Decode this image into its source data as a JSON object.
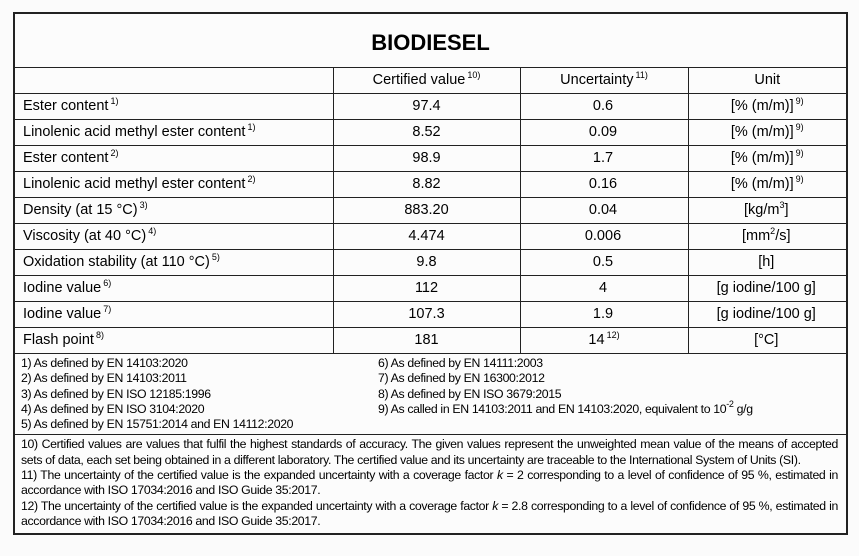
{
  "title": "BIODIESEL",
  "headers": {
    "property": "",
    "certified": "Certified value",
    "certified_ref": "10)",
    "uncertainty": "Uncertainty",
    "uncertainty_ref": "11)",
    "unit": "Unit"
  },
  "rows": [
    {
      "label": "Ester content",
      "ref": "1)",
      "value": "97.4",
      "unc": "0.6",
      "unc_ref": "",
      "unit": "[% (m/m)]",
      "unit_sup": "",
      "unit_tail": "",
      "unit_ref": "9)"
    },
    {
      "label": "Linolenic acid methyl ester content",
      "ref": "1)",
      "value": "8.52",
      "unc": "0.09",
      "unc_ref": "",
      "unit": "[% (m/m)]",
      "unit_sup": "",
      "unit_tail": "",
      "unit_ref": "9)"
    },
    {
      "label": "Ester content",
      "ref": "2)",
      "value": "98.9",
      "unc": "1.7",
      "unc_ref": "",
      "unit": "[% (m/m)]",
      "unit_sup": "",
      "unit_tail": "",
      "unit_ref": "9)"
    },
    {
      "label": "Linolenic acid methyl ester content",
      "ref": "2)",
      "value": "8.82",
      "unc": "0.16",
      "unc_ref": "",
      "unit": "[% (m/m)]",
      "unit_sup": "",
      "unit_tail": "",
      "unit_ref": "9)"
    },
    {
      "label": "Density (at 15 °C)",
      "ref": "3)",
      "value": "883.20",
      "unc": "0.04",
      "unc_ref": "",
      "unit": "[kg/m",
      "unit_sup": "3",
      "unit_tail": "]",
      "unit_ref": ""
    },
    {
      "label": "Viscosity (at 40 °C)",
      "ref": "4)",
      "value": "4.474",
      "unc": "0.006",
      "unc_ref": "",
      "unit": "[mm",
      "unit_sup": "2",
      "unit_tail": "/s]",
      "unit_ref": ""
    },
    {
      "label": "Oxidation stability (at 110 °C)",
      "ref": "5)",
      "value": "9.8",
      "unc": "0.5",
      "unc_ref": "",
      "unit": "[h]",
      "unit_sup": "",
      "unit_tail": "",
      "unit_ref": ""
    },
    {
      "label": "Iodine value",
      "ref": "6)",
      "value": "112",
      "unc": "4",
      "unc_ref": "",
      "unit": "[g iodine/100 g]",
      "unit_sup": "",
      "unit_tail": "",
      "unit_ref": ""
    },
    {
      "label": "Iodine value",
      "ref": "7)",
      "value": "107.3",
      "unc": "1.9",
      "unc_ref": "",
      "unit": "[g iodine/100 g]",
      "unit_sup": "",
      "unit_tail": "",
      "unit_ref": ""
    },
    {
      "label": "Flash point",
      "ref": "8)",
      "value": "181",
      "unc": "14",
      "unc_ref": "12)",
      "unit": "[°C]",
      "unit_sup": "",
      "unit_tail": "",
      "unit_ref": ""
    }
  ],
  "footnotes_left": [
    "1) As defined by EN 14103:2020",
    "2) As defined by EN 14103:2011",
    "3) As defined by EN ISO 12185:1996",
    "4) As defined by EN ISO 3104:2020",
    "5) As defined by EN 15751:2014 and EN 14112:2020"
  ],
  "footnotes_right": [
    "6) As defined by EN 14111:2003",
    "7) As defined by EN 16300:2012",
    "8) As defined by EN ISO 3679:2015"
  ],
  "footnote9": {
    "text": "9) As called in EN 14103:2011 and EN 14103:2020, equivalent to 10",
    "sup": "-2",
    "tail": " g/g"
  },
  "note10": "10) Certified values are values that fulfil the highest standards of accuracy. The given values represent the unweighted mean value of the means of accepted sets of data, each set being obtained in a different laboratory. The certified value and its uncertainty are traceable to the International System of Units (SI).",
  "note11": {
    "a": "11) The uncertainty of the certified value is the expanded uncertainty with a coverage factor ",
    "k": "k",
    "b": " = 2 corresponding to a level of confidence of 95 %, estimated in accordance with ISO 17034:2016 and ISO Guide 35:2017."
  },
  "note12": {
    "a": "12) The uncertainty of the certified value is the expanded uncertainty with a coverage factor ",
    "k": "k",
    "b": " = 2.8 corresponding to a level of confidence of 95 %, estimated in accordance with ISO 17034:2016 and ISO Guide 35:2017."
  }
}
